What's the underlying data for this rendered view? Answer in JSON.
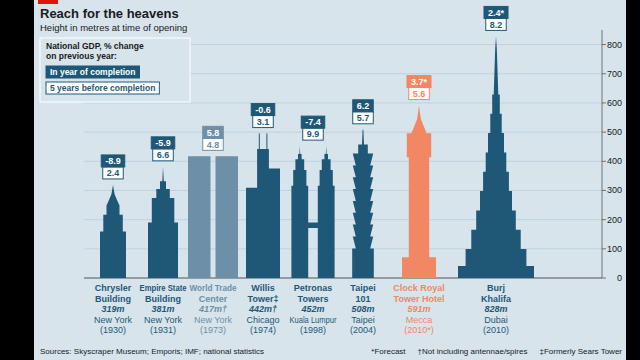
{
  "chart_data": {
    "type": "bar",
    "title": "Reach for the heavens",
    "subtitle": "Height in metres at time of opening",
    "categories": [
      "Chrysler Building",
      "Empire State Building",
      "World Trade Center",
      "Willis Tower‡",
      "Petronas Towers",
      "Taipei 101",
      "Clock Royal Tower Hotel",
      "Burj Khalifa"
    ],
    "values": [
      319,
      381,
      417,
      442,
      452,
      508,
      591,
      828
    ],
    "value_labels": [
      "319m",
      "381m",
      "417m†",
      "442m†",
      "452m",
      "508m",
      "591m",
      "828m"
    ],
    "cities": [
      "New York",
      "New York",
      "New York",
      "Chicago",
      "Kuala Lumpur",
      "Taipei",
      "Mecca",
      "Dubai"
    ],
    "years": [
      "(1930)",
      "(1931)",
      "(1973)",
      "(1974)",
      "(1998)",
      "(2004)",
      "(2010*)",
      "(2010)"
    ],
    "color": "#1f5876",
    "colors": [
      "#1f5876",
      "#1f5876",
      "#6d90a8",
      "#1f5876",
      "#1f5876",
      "#1f5876",
      "#f28763",
      "#1f5876"
    ],
    "ylim": [
      0,
      850
    ],
    "yticks": [
      0,
      100,
      200,
      300,
      400,
      500,
      600,
      700,
      800
    ],
    "grid": true,
    "gdp_change": {
      "title": "National GDP, % change on previous year:",
      "series": [
        {
          "name": "In year of completion",
          "values": [
            -8.9,
            -5.9,
            5.8,
            -0.6,
            -7.4,
            6.2,
            3.7,
            2.4
          ],
          "value_labels": [
            "-8.9",
            "-5.9",
            "5.8",
            "-0.6",
            "-7.4",
            "6.2",
            "3.7*",
            "2.4*"
          ]
        },
        {
          "name": "5 years before completion",
          "values": [
            2.4,
            6.6,
            4.8,
            3.1,
            9.9,
            5.7,
            5.6,
            8.2
          ]
        }
      ]
    },
    "source": "Sources: Skyscraper Museum; Emporis; IMF; national statistics",
    "notes": [
      "*Forecast",
      "†Not including antennae/spires",
      "‡Formerly Sears Tower"
    ]
  }
}
